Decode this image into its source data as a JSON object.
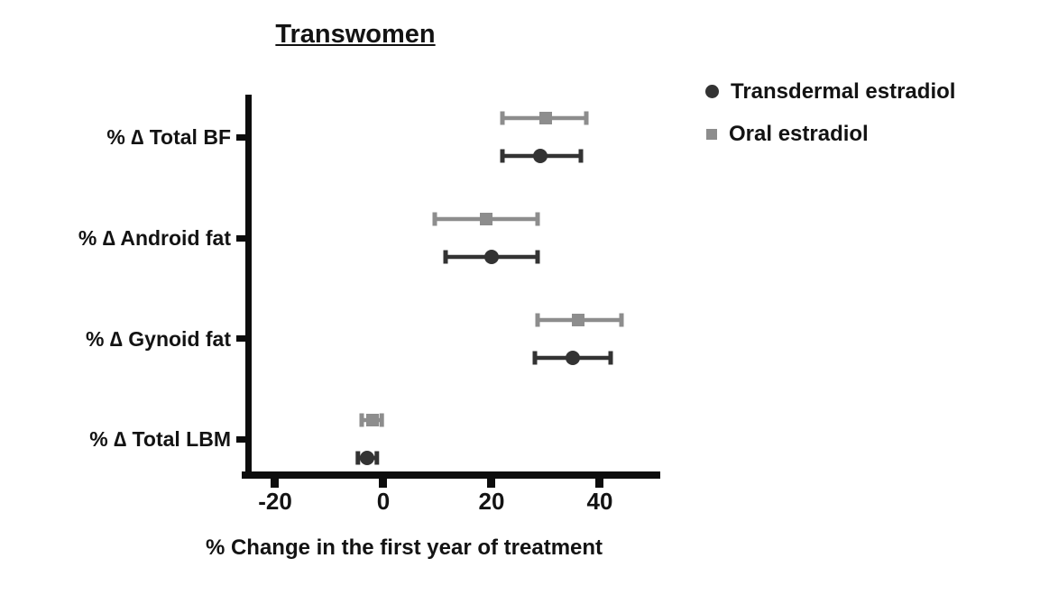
{
  "chart_data": {
    "type": "scatter",
    "variant": "horizontal-dot-plot-with-error-bars",
    "title": "Transwomen",
    "xlabel": "% Change in the first year of treatment",
    "ylabel": "",
    "categories": [
      "% ∆ Total BF",
      "% ∆ Android fat",
      "% ∆ Gynoid fat",
      "% ∆ Total LBM"
    ],
    "xticks": [
      "-20",
      "0",
      "20",
      "40"
    ],
    "xlim": [
      -25.5,
      51
    ],
    "grid": false,
    "legend_position": "top-right",
    "series": [
      {
        "name": "Transdermal estradiol",
        "marker": "circle",
        "color": "#333333",
        "values": [
          29,
          20,
          35,
          -3
        ],
        "ci_low": [
          22,
          11.5,
          28,
          -4.7
        ],
        "ci_high": [
          36.5,
          28.5,
          42,
          -1.2
        ]
      },
      {
        "name": "Oral estradiol",
        "marker": "square",
        "color": "#8d8d8d",
        "values": [
          30,
          19,
          36,
          -2
        ],
        "ci_low": [
          22,
          9.5,
          28.5,
          -4
        ],
        "ci_high": [
          37.5,
          28.5,
          44,
          -0.3
        ]
      }
    ]
  }
}
